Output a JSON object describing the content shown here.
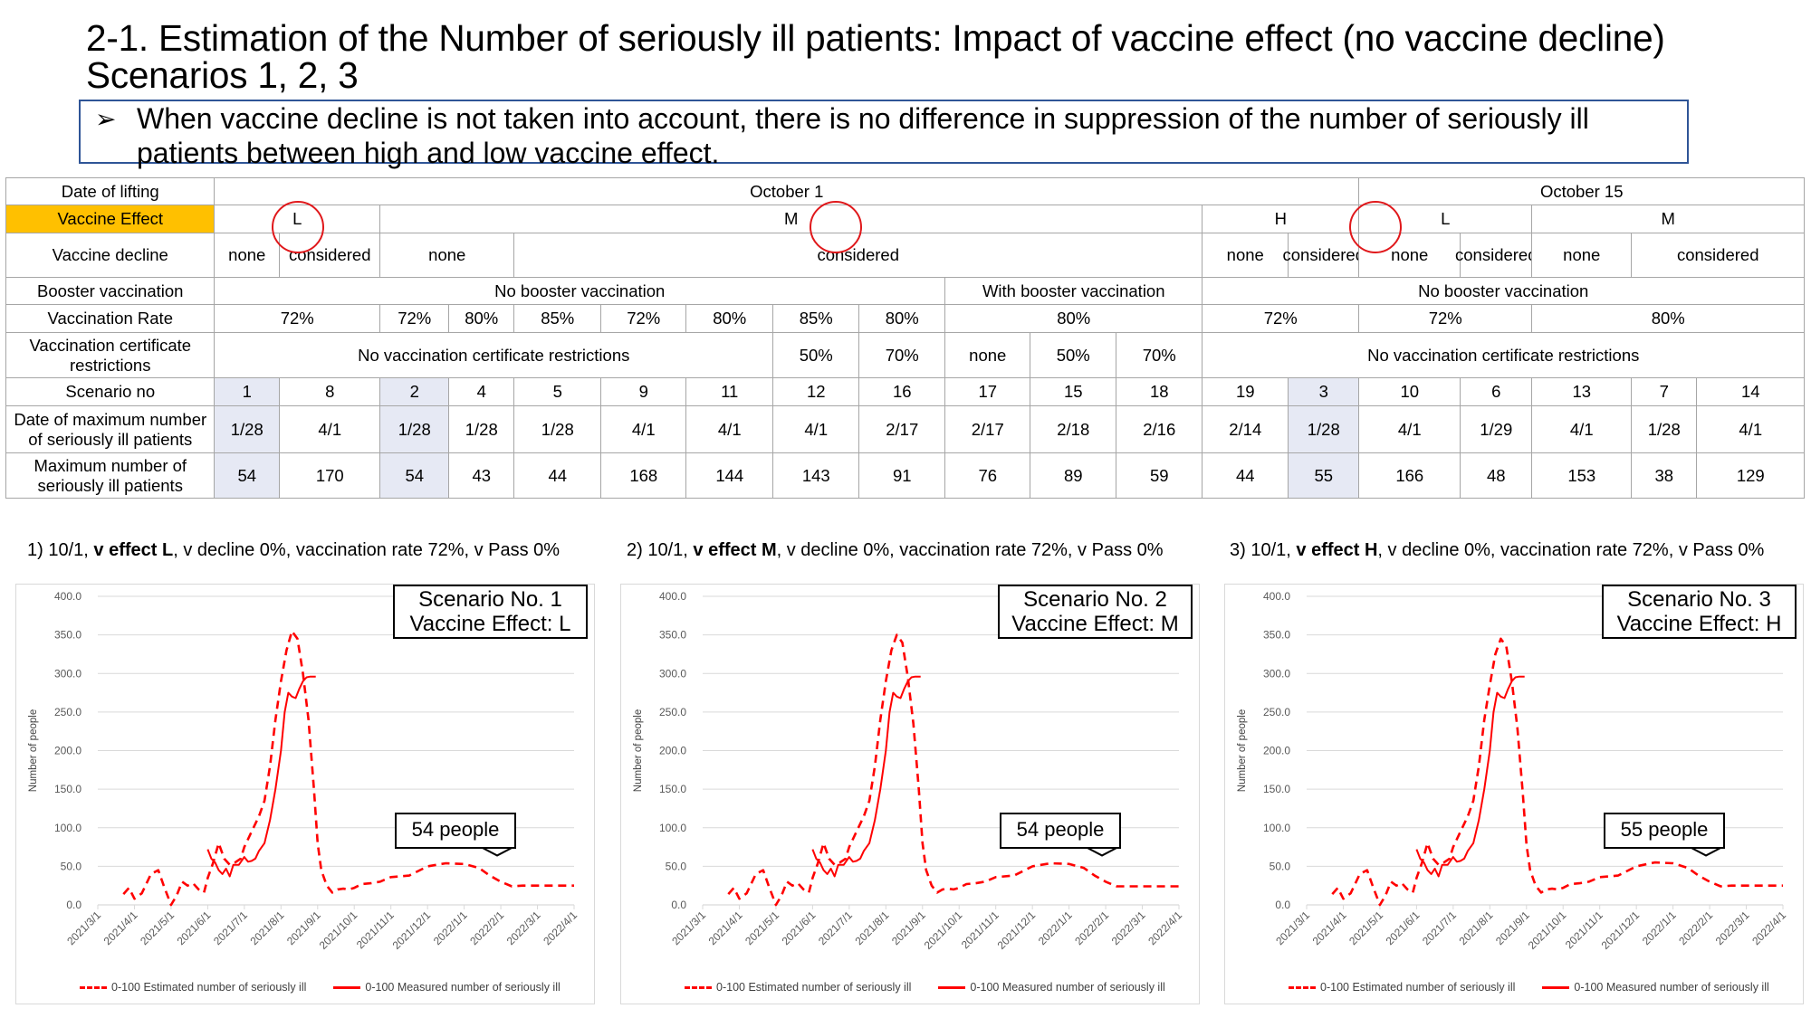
{
  "title": "2-1. Estimation of the Number of seriously ill patients: Impact of vaccine effect (no vaccine decline) Scenarios 1, 2, 3",
  "summary": {
    "bullet_icon": "➢",
    "text": "When vaccine decline is not taken into account, there is no difference in suppression of the number of seriously ill patients between high and low vaccine effect."
  },
  "colors": {
    "accent_yellow": "#ffc000",
    "highlight_cell": "#e6e9f4",
    "circle_red": "#e0181b",
    "series_red": "#ff0000",
    "summary_border": "#2f5597"
  },
  "table": {
    "row_labels": [
      "Date of lifting",
      "Vaccine Effect",
      "Vaccine decline",
      "Booster vaccination",
      "Vaccination Rate",
      "Vaccination certificate restrictions",
      "Scenario no",
      "Date of maximum number of seriously ill patients",
      "Maximum number of seriously ill patients"
    ],
    "date_of_lifting": [
      "October 1",
      "October 15"
    ],
    "vaccine_effect": [
      "L",
      "M",
      "H",
      "L",
      "M"
    ],
    "vaccine_decline": [
      "none",
      "considered",
      "none",
      "considered",
      "none",
      "considered",
      "none",
      "considered",
      "none",
      "considered"
    ],
    "booster": [
      "No booster vaccination",
      "With booster vaccination",
      "No booster vaccination"
    ],
    "vaccination_rate": [
      "72%",
      "72%",
      "80%",
      "85%",
      "72%",
      "80%",
      "85%",
      "80%",
      "80%",
      "72%",
      "72%",
      "80%"
    ],
    "certificate": [
      "No vaccination certificate restrictions",
      "50%",
      "70%",
      "none",
      "50%",
      "70%",
      "No vaccination certificate restrictions"
    ],
    "scenario_no": [
      "1",
      "8",
      "2",
      "4",
      "5",
      "9",
      "11",
      "12",
      "16",
      "17",
      "15",
      "18",
      "19",
      "3",
      "10",
      "6",
      "13",
      "7",
      "14"
    ],
    "date_of_max": [
      "1/28",
      "4/1",
      "1/28",
      "1/28",
      "1/28",
      "4/1",
      "4/1",
      "4/1",
      "2/17",
      "2/17",
      "2/18",
      "2/16",
      "2/14",
      "1/28",
      "4/1",
      "1/29",
      "4/1",
      "1/28",
      "4/1"
    ],
    "max_number": [
      "54",
      "170",
      "54",
      "43",
      "44",
      "168",
      "144",
      "143",
      "91",
      "76",
      "89",
      "59",
      "44",
      "55",
      "166",
      "48",
      "153",
      "38",
      "129"
    ],
    "highlighted_scenarios": [
      "1",
      "2",
      "3"
    ],
    "circled_effects": [
      "L",
      "M",
      "H"
    ]
  },
  "charts": [
    {
      "caption_prefix": "1) 10/1, ",
      "caption_bold": "v effect L",
      "caption_suffix": ", v decline 0%, vaccination rate 72%, v Pass 0%",
      "scenario_line1": "Scenario No. 1",
      "scenario_line2": "Vaccine Effect: L",
      "callout": "54 people"
    },
    {
      "caption_prefix": "2) 10/1, ",
      "caption_bold": "v effect M",
      "caption_suffix": ", v decline 0%, vaccination rate 72%, v Pass 0%",
      "scenario_line1": "Scenario No. 2",
      "scenario_line2": "Vaccine Effect: M",
      "callout": "54 people"
    },
    {
      "caption_prefix": "3) 10/1, ",
      "caption_bold": "v effect H",
      "caption_suffix": ", v decline 0%, vaccination rate 72%, v Pass 0%",
      "scenario_line1": "Scenario No. 3",
      "scenario_line2": "Vaccine Effect: H",
      "callout": "55 people"
    }
  ],
  "chart_data": [
    {
      "type": "line",
      "title": "Scenario No. 1 Vaccine Effect: L",
      "xlabel": "",
      "ylabel": "Number of people",
      "ylim": [
        0,
        400
      ],
      "yticks": [
        "0.0",
        "50.0",
        "100.0",
        "150.0",
        "200.0",
        "250.0",
        "300.0",
        "350.0",
        "400.0"
      ],
      "xticks": [
        "2021/3/1",
        "2021/4/1",
        "2021/5/1",
        "2021/6/1",
        "2021/7/1",
        "2021/8/1",
        "2021/9/1",
        "2021/10/1",
        "2021/11/1",
        "2021/12/1",
        "2022/1/1",
        "2022/2/1",
        "2022/3/1",
        "2022/4/1"
      ],
      "grid": true,
      "legend": "bottom",
      "annotation": "54 people",
      "series": [
        {
          "name": "0-100 Estimated number of seriously ill",
          "style": "dashed",
          "x_month_index": [
            0.7,
            0.85,
            1.0,
            1.2,
            1.45,
            1.65,
            1.8,
            2.0,
            2.15,
            2.3,
            2.45,
            2.6,
            2.75,
            2.9,
            3.0,
            3.15,
            3.3,
            3.45,
            3.6,
            3.75,
            3.9,
            4.0,
            4.2,
            4.4,
            4.55,
            4.7,
            4.85,
            5.0,
            5.15,
            5.3,
            5.45,
            5.6,
            5.75,
            5.9,
            6.0,
            6.1,
            6.25,
            6.4,
            6.55,
            6.7,
            6.85,
            7.0,
            7.2,
            7.45,
            7.7,
            8.0,
            8.5,
            9.0,
            9.5,
            10.0,
            10.4,
            10.7,
            11.0,
            11.3,
            11.6,
            12.0,
            12.4,
            12.8,
            13.0
          ],
          "values": [
            14,
            22,
            8,
            15,
            40,
            45,
            25,
            0,
            12,
            30,
            25,
            28,
            20,
            16,
            35,
            55,
            80,
            60,
            52,
            55,
            60,
            75,
            95,
            115,
            135,
            180,
            240,
            290,
            330,
            355,
            345,
            300,
            240,
            150,
            80,
            45,
            25,
            16,
            20,
            21,
            20,
            22,
            27,
            28,
            30,
            36,
            38,
            50,
            54,
            53,
            48,
            38,
            30,
            24,
            25,
            25,
            25,
            25,
            25
          ],
          "note": "x given as months after 2021/3/1"
        },
        {
          "name": "0-100 Measured number of seriously ill",
          "style": "solid",
          "x_month_index": [
            3.0,
            3.1,
            3.2,
            3.3,
            3.4,
            3.5,
            3.6,
            3.7,
            3.85,
            4.0,
            4.1,
            4.2,
            4.3,
            4.4,
            4.55,
            4.7,
            4.85,
            5.0,
            5.1,
            5.2,
            5.3,
            5.4,
            5.5,
            5.6,
            5.7,
            5.8,
            5.9,
            5.95
          ],
          "values": [
            72,
            60,
            55,
            45,
            40,
            47,
            37,
            52,
            52,
            62,
            56,
            57,
            60,
            70,
            80,
            110,
            150,
            200,
            250,
            275,
            270,
            268,
            280,
            290,
            295,
            296,
            296,
            296
          ]
        }
      ]
    },
    {
      "type": "line",
      "title": "Scenario No. 2 Vaccine Effect: M",
      "xlabel": "",
      "ylabel": "Number of people",
      "ylim": [
        0,
        400
      ],
      "yticks": [
        "0.0",
        "50.0",
        "100.0",
        "150.0",
        "200.0",
        "250.0",
        "300.0",
        "350.0",
        "400.0"
      ],
      "xticks": [
        "2021/3/1",
        "2021/4/1",
        "2021/5/1",
        "2021/6/1",
        "2021/7/1",
        "2021/8/1",
        "2021/9/1",
        "2021/10/1",
        "2021/11/1",
        "2021/12/1",
        "2022/1/1",
        "2022/2/1",
        "2022/3/1",
        "2022/4/1"
      ],
      "grid": true,
      "legend": "bottom",
      "annotation": "54 people",
      "series": [
        {
          "name": "0-100 Estimated number of seriously ill",
          "style": "dashed",
          "x_month_index": [
            0.7,
            0.85,
            1.0,
            1.2,
            1.45,
            1.65,
            1.8,
            2.0,
            2.15,
            2.3,
            2.45,
            2.6,
            2.75,
            2.9,
            3.0,
            3.15,
            3.3,
            3.45,
            3.6,
            3.75,
            3.9,
            4.0,
            4.2,
            4.4,
            4.55,
            4.7,
            4.85,
            5.0,
            5.15,
            5.3,
            5.45,
            5.6,
            5.75,
            5.9,
            6.0,
            6.1,
            6.25,
            6.4,
            6.55,
            6.7,
            6.85,
            7.0,
            7.2,
            7.45,
            7.7,
            8.0,
            8.5,
            9.0,
            9.5,
            10.0,
            10.4,
            10.7,
            11.0,
            11.3,
            11.6,
            12.0,
            12.4,
            12.8,
            13.0
          ],
          "values": [
            14,
            22,
            8,
            15,
            40,
            45,
            25,
            0,
            12,
            30,
            25,
            28,
            20,
            16,
            35,
            55,
            80,
            60,
            52,
            55,
            60,
            75,
            95,
            115,
            135,
            180,
            240,
            290,
            330,
            350,
            340,
            295,
            235,
            150,
            80,
            45,
            25,
            16,
            20,
            21,
            20,
            22,
            27,
            28,
            30,
            36,
            38,
            50,
            54,
            53,
            48,
            38,
            30,
            24,
            24,
            24,
            24,
            24,
            24
          ]
        },
        {
          "name": "0-100 Measured number of seriously ill",
          "style": "solid",
          "x_month_index": [
            3.0,
            3.1,
            3.2,
            3.3,
            3.4,
            3.5,
            3.6,
            3.7,
            3.85,
            4.0,
            4.1,
            4.2,
            4.3,
            4.4,
            4.55,
            4.7,
            4.85,
            5.0,
            5.1,
            5.2,
            5.3,
            5.4,
            5.5,
            5.6,
            5.7,
            5.8,
            5.9,
            5.95
          ],
          "values": [
            72,
            60,
            55,
            45,
            40,
            47,
            37,
            52,
            52,
            62,
            56,
            57,
            60,
            70,
            80,
            110,
            150,
            200,
            250,
            275,
            270,
            268,
            280,
            290,
            295,
            296,
            296,
            296
          ]
        }
      ]
    },
    {
      "type": "line",
      "title": "Scenario No. 3 Vaccine Effect: H",
      "xlabel": "",
      "ylabel": "Number of people",
      "ylim": [
        0,
        400
      ],
      "yticks": [
        "0.0",
        "50.0",
        "100.0",
        "150.0",
        "200.0",
        "250.0",
        "300.0",
        "350.0",
        "400.0"
      ],
      "xticks": [
        "2021/3/1",
        "2021/4/1",
        "2021/5/1",
        "2021/6/1",
        "2021/7/1",
        "2021/8/1",
        "2021/9/1",
        "2021/10/1",
        "2021/11/1",
        "2021/12/1",
        "2022/1/1",
        "2022/2/1",
        "2022/3/1",
        "2022/4/1"
      ],
      "grid": true,
      "legend": "bottom",
      "annotation": "55 people",
      "series": [
        {
          "name": "0-100 Estimated number of seriously ill",
          "style": "dashed",
          "x_month_index": [
            0.7,
            0.85,
            1.0,
            1.2,
            1.45,
            1.65,
            1.8,
            2.0,
            2.15,
            2.3,
            2.45,
            2.6,
            2.75,
            2.9,
            3.0,
            3.15,
            3.3,
            3.45,
            3.6,
            3.75,
            3.9,
            4.0,
            4.2,
            4.4,
            4.55,
            4.7,
            4.85,
            5.0,
            5.15,
            5.3,
            5.45,
            5.6,
            5.75,
            5.9,
            6.0,
            6.1,
            6.25,
            6.4,
            6.55,
            6.7,
            6.85,
            7.0,
            7.2,
            7.45,
            7.7,
            8.0,
            8.5,
            9.0,
            9.5,
            10.0,
            10.4,
            10.7,
            11.0,
            11.3,
            11.6,
            12.0,
            12.4,
            12.8,
            13.0
          ],
          "values": [
            14,
            22,
            8,
            15,
            40,
            45,
            25,
            0,
            12,
            30,
            25,
            28,
            20,
            16,
            35,
            55,
            80,
            60,
            52,
            55,
            60,
            75,
            95,
            115,
            135,
            180,
            240,
            285,
            325,
            345,
            335,
            290,
            230,
            145,
            78,
            45,
            25,
            16,
            20,
            21,
            20,
            22,
            27,
            28,
            30,
            36,
            38,
            50,
            55,
            54,
            48,
            38,
            30,
            24,
            25,
            25,
            25,
            25,
            25
          ]
        },
        {
          "name": "0-100 Measured number of seriously ill",
          "style": "solid",
          "x_month_index": [
            3.0,
            3.1,
            3.2,
            3.3,
            3.4,
            3.5,
            3.6,
            3.7,
            3.85,
            4.0,
            4.1,
            4.2,
            4.3,
            4.4,
            4.55,
            4.7,
            4.85,
            5.0,
            5.1,
            5.2,
            5.3,
            5.4,
            5.5,
            5.6,
            5.7,
            5.8,
            5.9,
            5.95
          ],
          "values": [
            72,
            60,
            55,
            45,
            40,
            47,
            37,
            52,
            52,
            62,
            56,
            57,
            60,
            70,
            80,
            110,
            150,
            200,
            250,
            275,
            270,
            268,
            280,
            290,
            295,
            296,
            296,
            296
          ]
        }
      ]
    }
  ]
}
